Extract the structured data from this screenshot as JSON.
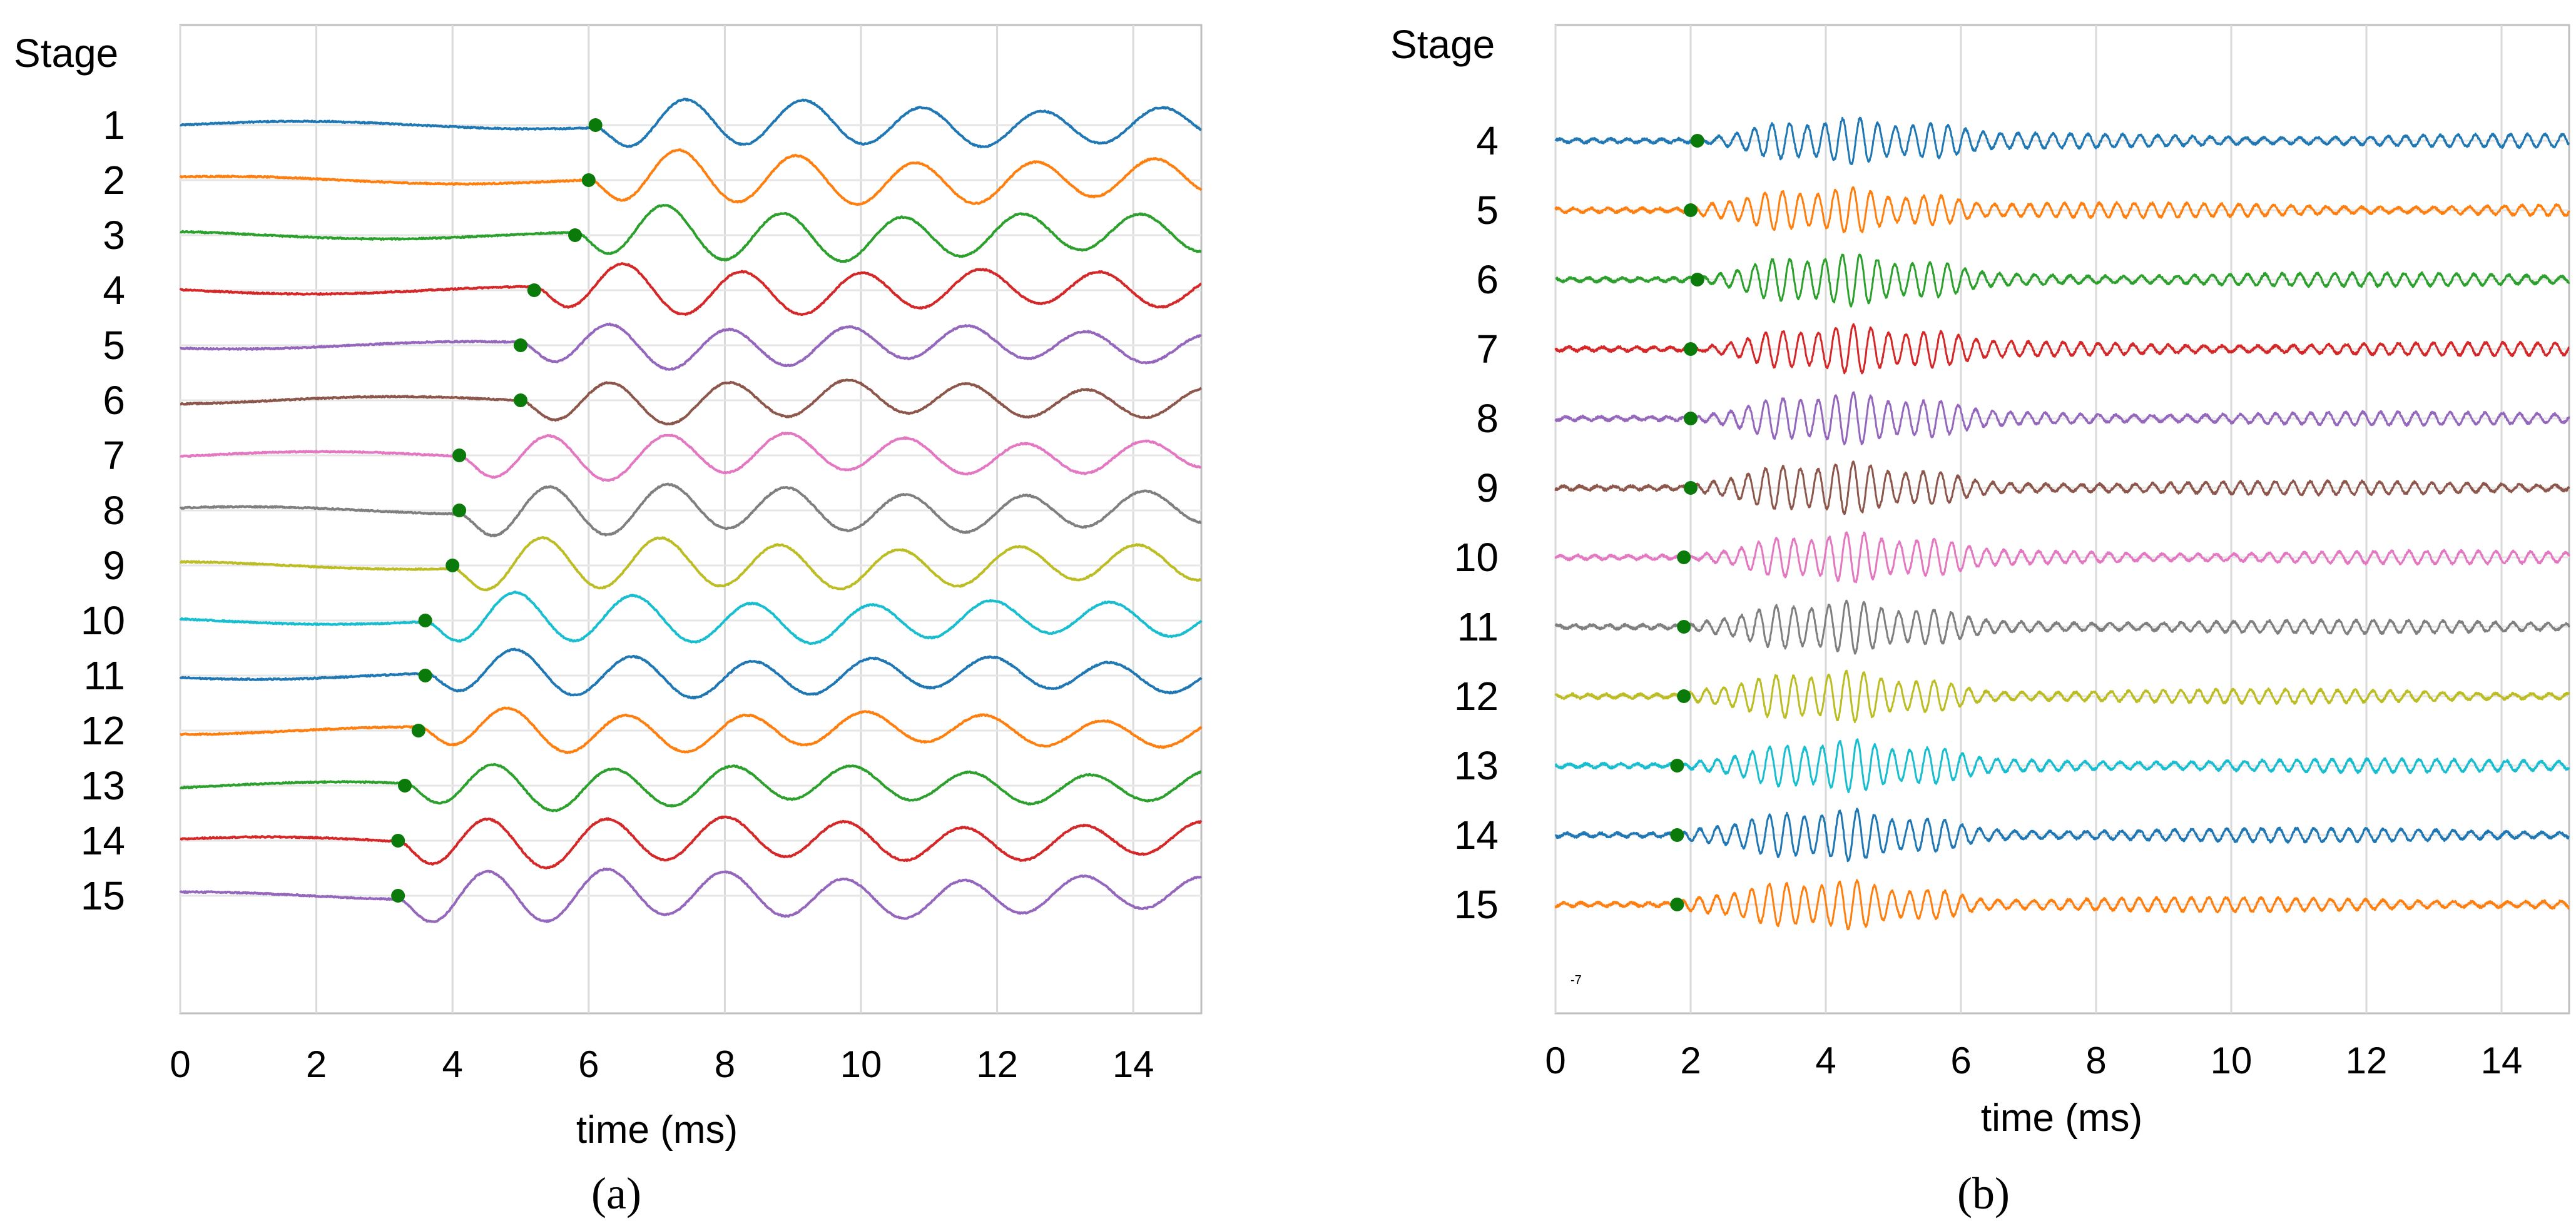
{
  "chart_data": [
    {
      "type": "line",
      "panel_label": "(a)",
      "stage_label": "Stage",
      "xlabel": "time (ms)",
      "ylabel": "",
      "xlim": [
        0,
        15
      ],
      "xticks": [
        0,
        2,
        4,
        6,
        8,
        10,
        12,
        14
      ],
      "grid": true,
      "series": [
        {
          "name": "1",
          "color": "#1f77b4",
          "onset_ms": 6.1
        },
        {
          "name": "2",
          "color": "#ff7f0e",
          "onset_ms": 6.0
        },
        {
          "name": "3",
          "color": "#2ca02c",
          "onset_ms": 5.8
        },
        {
          "name": "4",
          "color": "#d62728",
          "onset_ms": 5.2
        },
        {
          "name": "5",
          "color": "#9467bd",
          "onset_ms": 5.0
        },
        {
          "name": "6",
          "color": "#8c564b",
          "onset_ms": 5.0
        },
        {
          "name": "7",
          "color": "#e377c2",
          "onset_ms": 4.1
        },
        {
          "name": "8",
          "color": "#7f7f7f",
          "onset_ms": 4.1
        },
        {
          "name": "9",
          "color": "#bcbd22",
          "onset_ms": 4.0
        },
        {
          "name": "10",
          "color": "#17becf",
          "onset_ms": 3.6
        },
        {
          "name": "11",
          "color": "#1f77b4",
          "onset_ms": 3.6
        },
        {
          "name": "12",
          "color": "#ff7f0e",
          "onset_ms": 3.5
        },
        {
          "name": "13",
          "color": "#2ca02c",
          "onset_ms": 3.3
        },
        {
          "name": "14",
          "color": "#d62728",
          "onset_ms": 3.2
        },
        {
          "name": "15",
          "color": "#9467bd",
          "onset_ms": 3.2
        }
      ],
      "onset_marker_color": "#0a7a0a"
    },
    {
      "type": "line",
      "panel_label": "(b)",
      "stage_label": "Stage",
      "xlabel": "time (ms)",
      "ylabel": "",
      "xlim": [
        0,
        15
      ],
      "xticks": [
        0,
        2,
        4,
        6,
        8,
        10,
        12,
        14
      ],
      "grid": true,
      "bottom_annotation": "-7",
      "series": [
        {
          "name": "4",
          "color": "#1f77b4",
          "onset_ms": 2.1
        },
        {
          "name": "5",
          "color": "#ff7f0e",
          "onset_ms": 2.0
        },
        {
          "name": "6",
          "color": "#2ca02c",
          "onset_ms": 2.1
        },
        {
          "name": "7",
          "color": "#d62728",
          "onset_ms": 2.0
        },
        {
          "name": "8",
          "color": "#9467bd",
          "onset_ms": 2.0
        },
        {
          "name": "9",
          "color": "#8c564b",
          "onset_ms": 2.0
        },
        {
          "name": "10",
          "color": "#e377c2",
          "onset_ms": 1.9
        },
        {
          "name": "11",
          "color": "#7f7f7f",
          "onset_ms": 1.9
        },
        {
          "name": "12",
          "color": "#bcbd22",
          "onset_ms": 1.9
        },
        {
          "name": "13",
          "color": "#17becf",
          "onset_ms": 1.8
        },
        {
          "name": "14",
          "color": "#1f77b4",
          "onset_ms": 1.8
        },
        {
          "name": "15",
          "color": "#ff7f0e",
          "onset_ms": 1.8
        }
      ],
      "onset_marker_color": "#0a7a0a"
    }
  ]
}
